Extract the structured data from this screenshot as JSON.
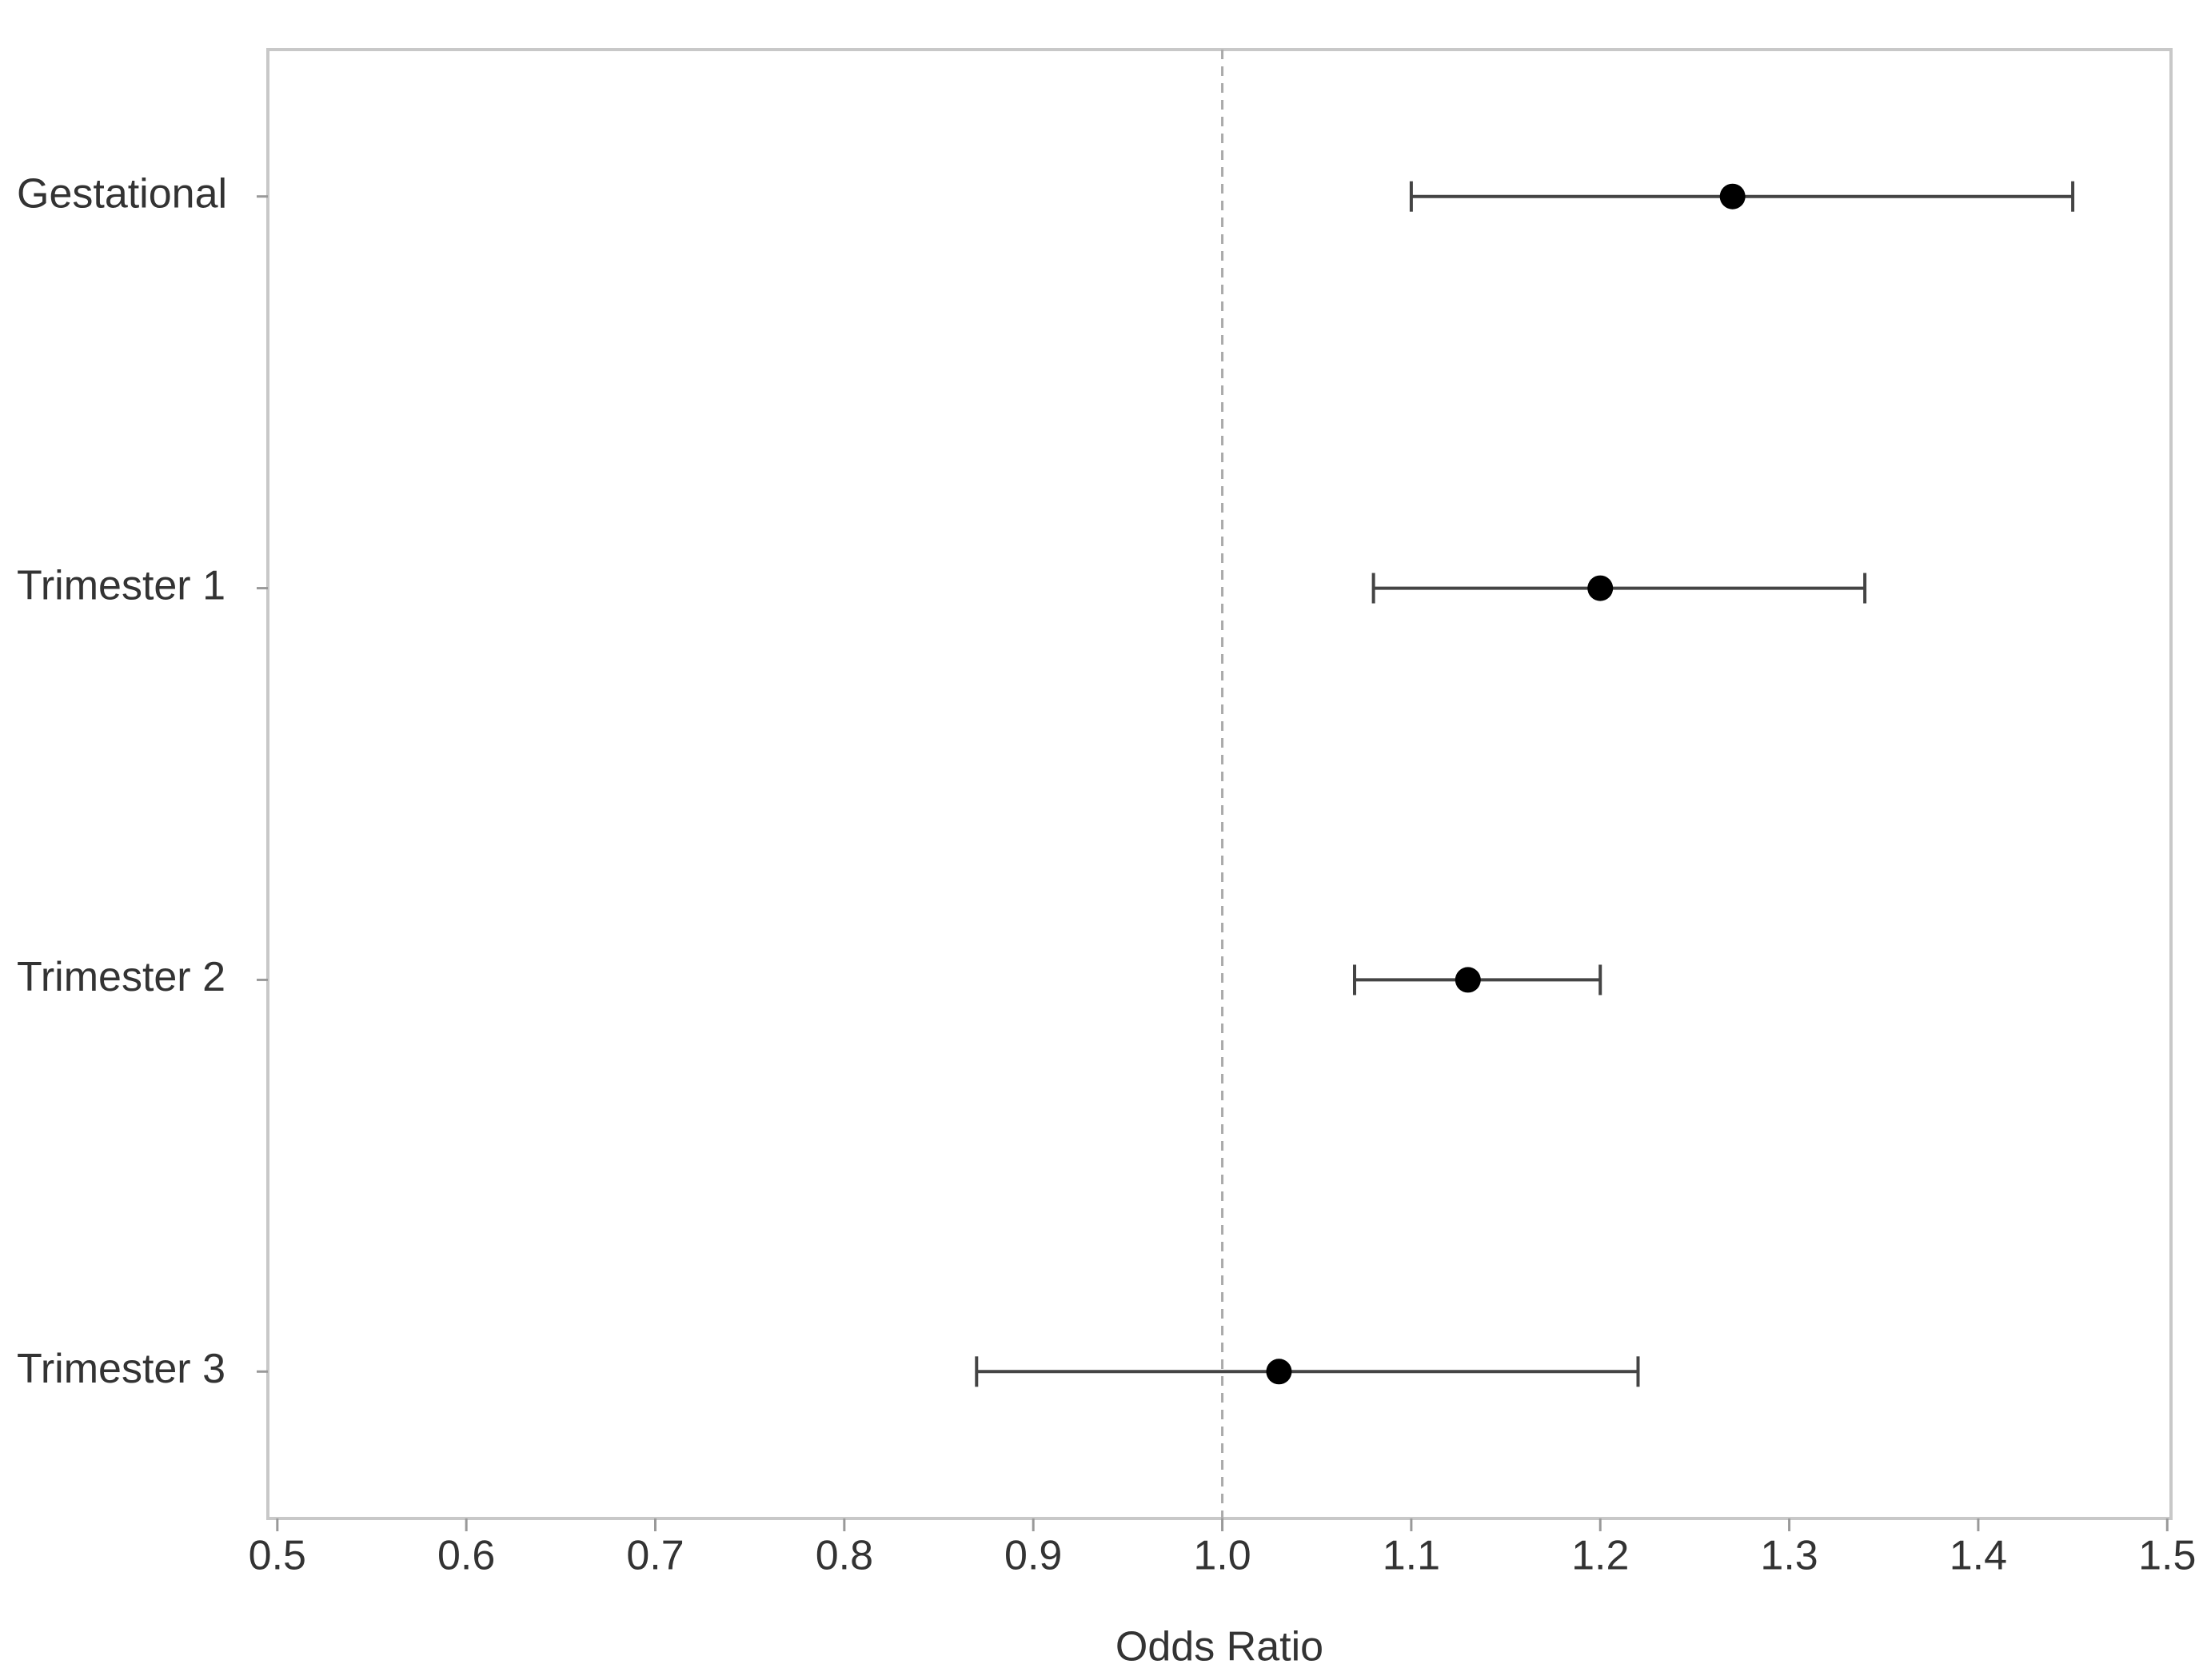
{
  "chart_data": {
    "type": "forest",
    "x_label": "Odds Ratio",
    "categories": [
      "Gestational",
      "Trimester 1",
      "Trimester 2",
      "Trimester 3"
    ],
    "values": [
      1.27,
      1.2,
      1.13,
      1.03
    ],
    "lower": [
      1.1,
      1.08,
      1.07,
      0.87
    ],
    "upper": [
      1.45,
      1.34,
      1.2,
      1.22
    ],
    "reference_line": 1.0,
    "color": "#000000",
    "xlim": [
      0.495,
      1.502
    ],
    "xticks": [
      0.5,
      0.6,
      0.7,
      0.8,
      0.9,
      {
        "value": 1.0,
        "label": "1.0"
      },
      1.1,
      1.2,
      1.3,
      1.4,
      1.5
    ]
  }
}
